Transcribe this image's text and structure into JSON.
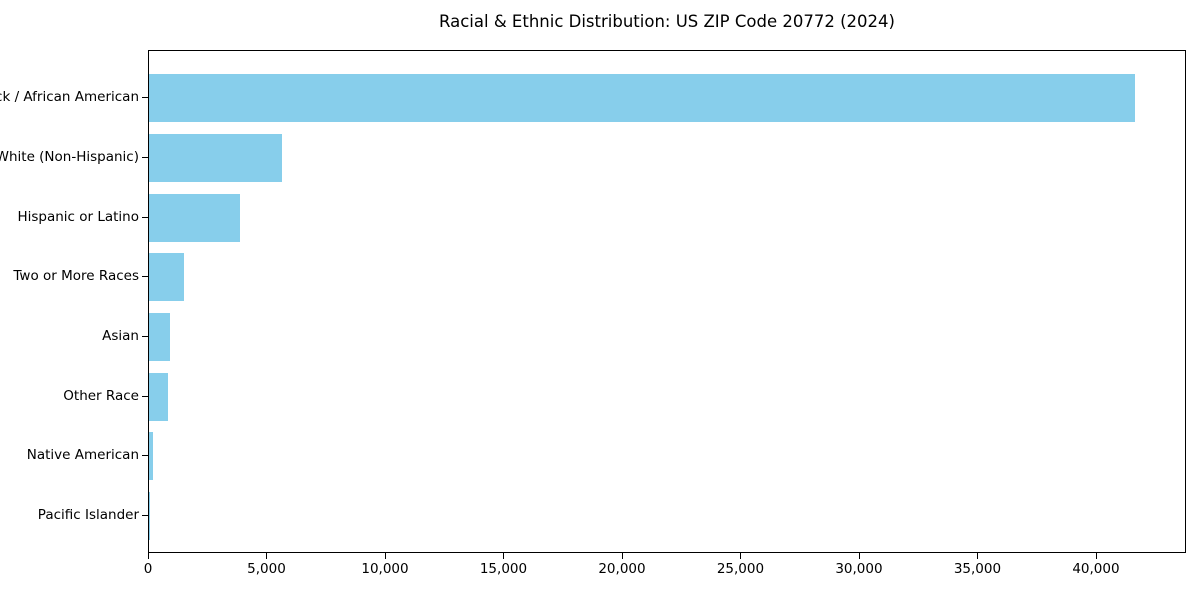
{
  "chart_data": {
    "type": "bar",
    "orientation": "horizontal",
    "title": "Racial & Ethnic Distribution: US ZIP Code 20772 (2024)",
    "categories": [
      "Black / African American",
      "White (Non-Hispanic)",
      "Hispanic or Latino",
      "Two or More Races",
      "Asian",
      "Other Race",
      "Native American",
      "Pacific Islander"
    ],
    "values": [
      41600,
      5600,
      3850,
      1475,
      885,
      800,
      150,
      25
    ],
    "xlabel": "",
    "ylabel": "",
    "xlim": [
      0,
      43800
    ],
    "x_ticks": [
      0,
      5000,
      10000,
      15000,
      20000,
      25000,
      30000,
      35000,
      40000
    ],
    "x_tick_labels": [
      "0",
      "5,000",
      "10,000",
      "15,000",
      "20,000",
      "25,000",
      "30,000",
      "35,000",
      "40,000"
    ],
    "bar_color": "#87CEEB",
    "frame_color": "#000000",
    "text_color": "#000000",
    "background_color": "#ffffff",
    "grid": false,
    "legend": null
  }
}
